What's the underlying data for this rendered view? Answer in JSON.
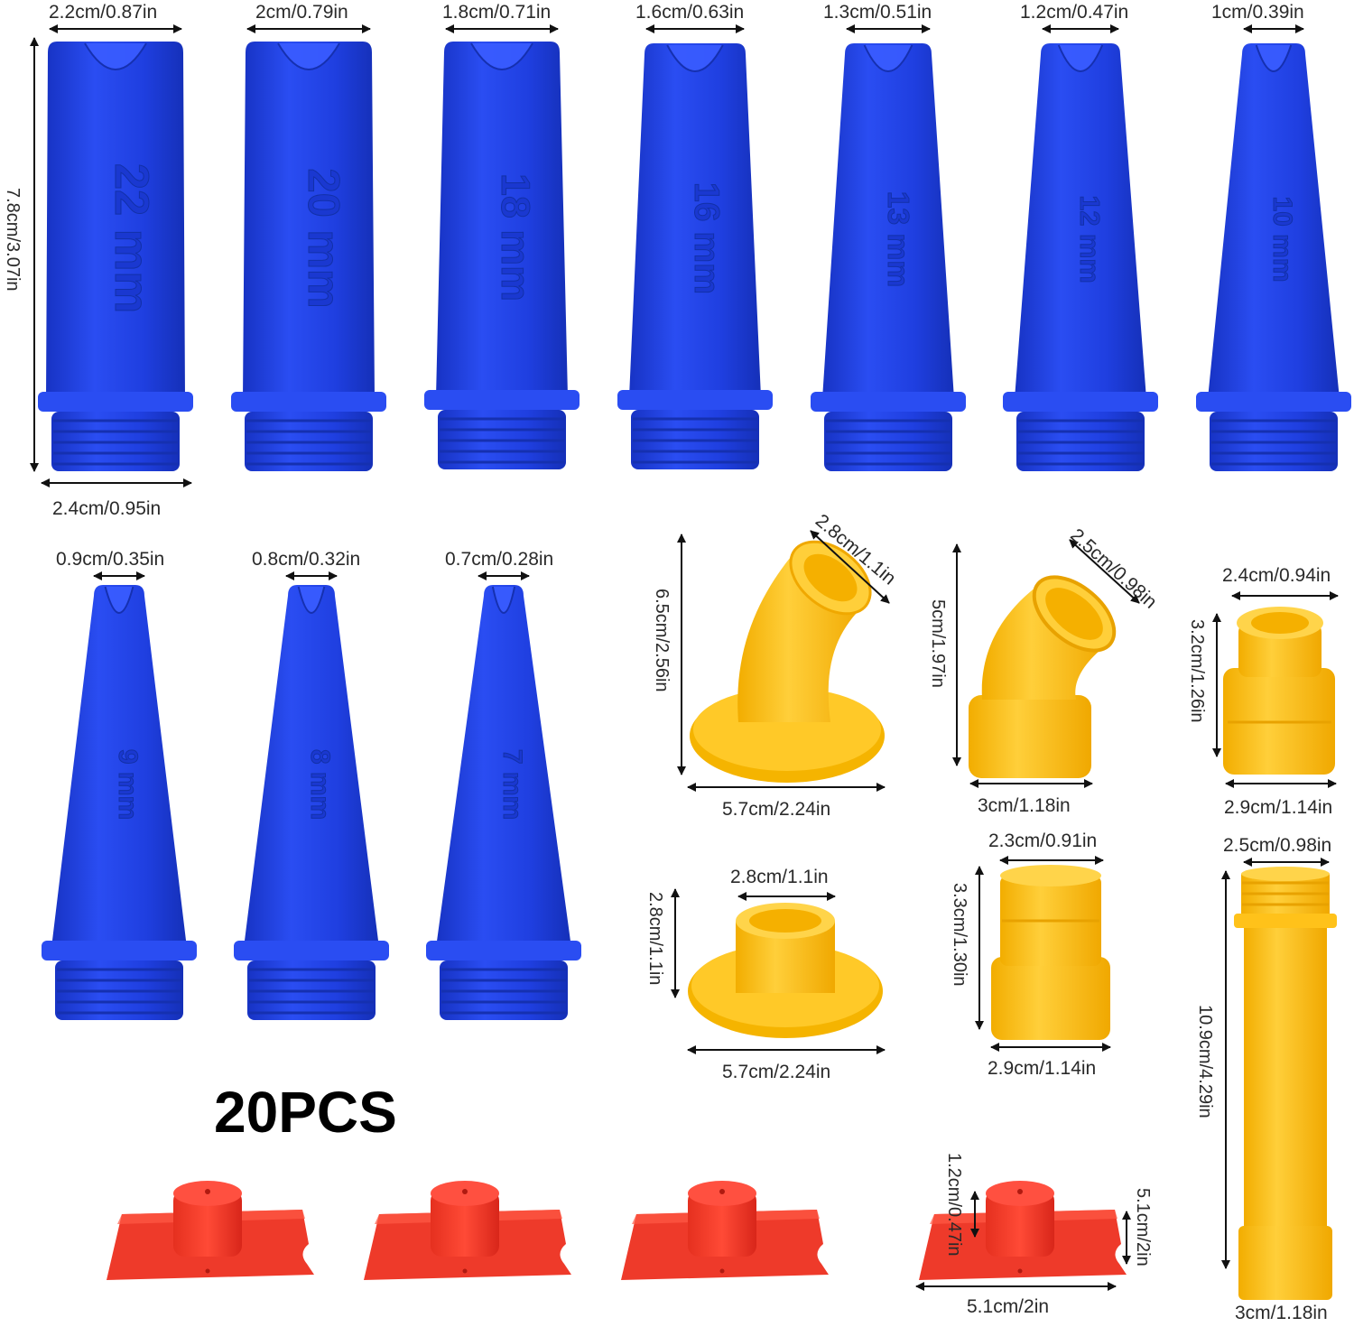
{
  "badge": "20PCS",
  "colors": {
    "blue": "#1f3fe0",
    "blue_dark": "#1733c4",
    "yellow": "#ffc21a",
    "yellow_dark": "#f2ad00",
    "red": "#f03a2a",
    "red_dark": "#d8261a"
  },
  "blue_nozzles_row1": [
    {
      "size_label": "2.2cm/0.87in",
      "engraving": "22 mm"
    },
    {
      "size_label": "2cm/0.79in",
      "engraving": "20 mm"
    },
    {
      "size_label": "1.8cm/0.71in",
      "engraving": "18 mm"
    },
    {
      "size_label": "1.6cm/0.63in",
      "engraving": "16 mm"
    },
    {
      "size_label": "1.3cm/0.51in",
      "engraving": "13 mm"
    },
    {
      "size_label": "1.2cm/0.47in",
      "engraving": "12 mm"
    },
    {
      "size_label": "1cm/0.39in",
      "engraving": "10 mm"
    }
  ],
  "blue_nozzles_row2": [
    {
      "size_label": "0.9cm/0.35in",
      "engraving": "9 mm"
    },
    {
      "size_label": "0.8cm/0.32in",
      "engraving": "8 mm"
    },
    {
      "size_label": "0.7cm/0.28in",
      "engraving": "7 mm"
    }
  ],
  "nozzle_height_label": "7.8cm/3.07in",
  "nozzle_base_label": "2.4cm/0.95in",
  "yellow_parts": {
    "elbow_large": {
      "top": "2.8cm/1.1in",
      "height": "6.5cm/2.56in",
      "base": "5.7cm/2.24in"
    },
    "elbow_small": {
      "top": "2.5cm/0.98in",
      "height": "5cm/1.97in",
      "base": "3cm/1.18in"
    },
    "adapter": {
      "top": "2.4cm/0.94in",
      "height": "3.2cm/1.26in",
      "base": "2.9cm/1.14in"
    },
    "flange": {
      "top": "2.8cm/1.1in",
      "height": "2.8cm/1.1in",
      "base": "5.7cm/2.24in"
    },
    "coupler": {
      "top": "2.3cm/0.91in",
      "height": "3.3cm/1.30in",
      "base": "2.9cm/1.14in"
    },
    "tube": {
      "top": "2.5cm/0.98in",
      "height": "10.9cm/4.29in",
      "base": "3cm/1.18in"
    }
  },
  "red_caps": {
    "count": 4,
    "height": "1.2cm/0.47in",
    "depth": "5.1cm/2in",
    "width": "5.1cm/2in"
  }
}
